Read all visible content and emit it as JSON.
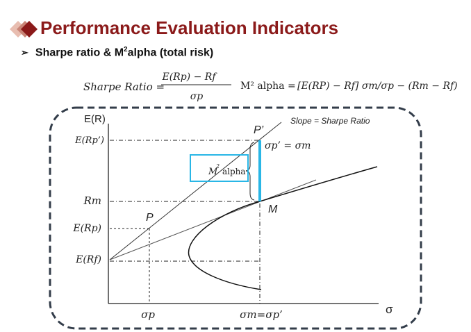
{
  "header": {
    "title": "Performance Evaluation Indicators",
    "subtitle_prefix": "Sharpe ratio & M",
    "subtitle_sup": "2",
    "subtitle_suffix": "alpha (total risk)"
  },
  "colors": {
    "title": "#8b1a1a",
    "diamond_dark": "#8b1a1a",
    "diamond_light": "#e8bdb0",
    "highlight": "#29b6e6",
    "frame": "#333d4a"
  },
  "formulas": {
    "sharpe_label": "Sharpe Ratio =",
    "sharpe_numerator": "E(Rp) − Rf",
    "sharpe_denominator": "σp",
    "m2_label": "M² alpha =",
    "m2_body": "[E(RP) − Rf] σm/σp − (Rm − Rf)"
  },
  "diagram": {
    "y_axis_label": "E(R)",
    "x_axis_label": "σ",
    "slope_note": "Slope = Sharpe Ratio",
    "point_p_prime": "P’",
    "point_p": "P",
    "point_m": "M",
    "sigma_eq": "σp’ = σm",
    "m2_box_base": "M",
    "m2_box_sup": "2",
    "m2_box_suffix": "alpha",
    "y_ticks": {
      "e_rp_prime": "E(Rp’)",
      "rm": "Rm",
      "e_rp": "E(Rp)",
      "e_rf": "E(Rf)"
    },
    "x_ticks": {
      "sigma_p": "σp",
      "sigma_m": "σm=σp’"
    }
  }
}
